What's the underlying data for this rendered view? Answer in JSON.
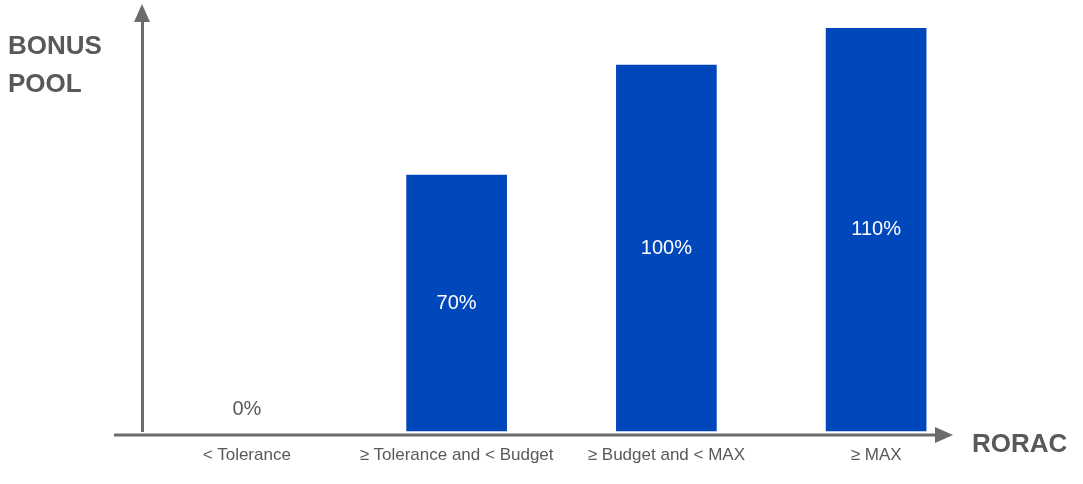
{
  "chart_data": {
    "type": "bar",
    "xlabel": "RORAC",
    "ylabel": "BONUS POOL",
    "categories": [
      "< Tolerance",
      "≥ Tolerance and < Budget",
      "≥ Budget and < MAX",
      "≥ MAX"
    ],
    "values": [
      0,
      70,
      100,
      110
    ],
    "value_labels": [
      "0%",
      "70%",
      "100%",
      "110%"
    ],
    "color": "#0047bb",
    "grid": false,
    "legend": false
  }
}
